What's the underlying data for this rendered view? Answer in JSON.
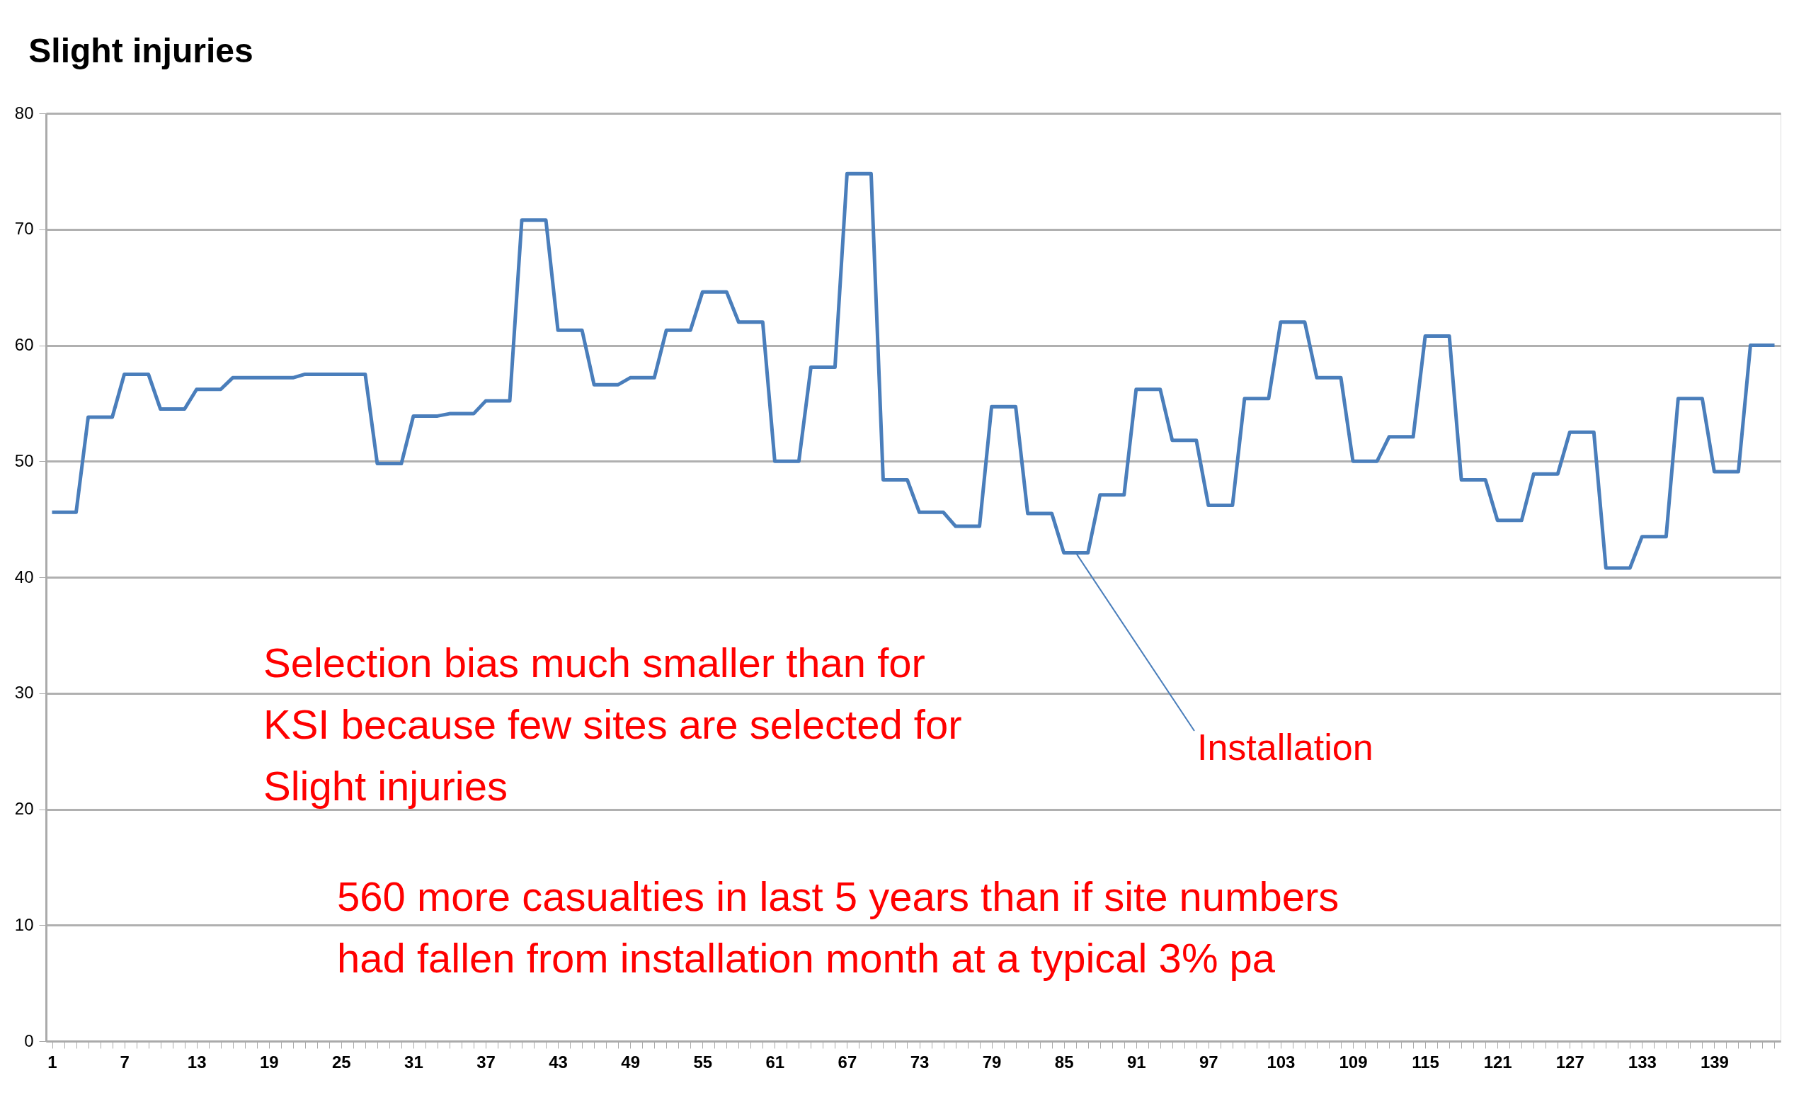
{
  "chart_data": {
    "type": "line",
    "title": "Slight injuries",
    "x": [
      1,
      2,
      3,
      4,
      5,
      6,
      7,
      8,
      9,
      10,
      11,
      12,
      13,
      14,
      15,
      16,
      17,
      18,
      19,
      20,
      21,
      22,
      23,
      24,
      25,
      26,
      27,
      28,
      29,
      30,
      31,
      32,
      33,
      34,
      35,
      36,
      37,
      38,
      39,
      40,
      41,
      42,
      43,
      44,
      45,
      46,
      47,
      48,
      49,
      50,
      51,
      52,
      53,
      54,
      55,
      56,
      57,
      58,
      59,
      60,
      61,
      62,
      63,
      64,
      65,
      66,
      67,
      68,
      69,
      70,
      71,
      72,
      73,
      74,
      75,
      76,
      77,
      78,
      79,
      80,
      81,
      82,
      83,
      84,
      85,
      86,
      87,
      88,
      89,
      90,
      91,
      92,
      93,
      94,
      95,
      96,
      97,
      98,
      99,
      100,
      101,
      102,
      103,
      104,
      105,
      106,
      107,
      108,
      109,
      110,
      111,
      112,
      113,
      114,
      115,
      116,
      117,
      118,
      119,
      120,
      121,
      122,
      123,
      124,
      125,
      126,
      127,
      128,
      129,
      130,
      131,
      132,
      133,
      134,
      135,
      136,
      137,
      138,
      139,
      140,
      141,
      142,
      143,
      144
    ],
    "series": [
      {
        "color": "#4a7ebb",
        "values": [
          45.6,
          45.6,
          45.6,
          53.8,
          53.8,
          53.8,
          57.5,
          57.5,
          57.5,
          54.5,
          54.5,
          54.5,
          56.2,
          56.2,
          56.2,
          57.2,
          57.2,
          57.2,
          57.2,
          57.2,
          57.2,
          57.5,
          57.5,
          57.5,
          57.5,
          57.5,
          57.5,
          49.8,
          49.8,
          49.8,
          53.9,
          53.9,
          53.9,
          54.1,
          54.1,
          54.1,
          55.2,
          55.2,
          55.2,
          70.8,
          70.8,
          70.8,
          61.3,
          61.3,
          61.3,
          56.6,
          56.6,
          56.6,
          57.2,
          57.2,
          57.2,
          61.3,
          61.3,
          61.3,
          64.6,
          64.6,
          64.6,
          62.0,
          62.0,
          62.0,
          50.0,
          50.0,
          50.0,
          58.1,
          58.1,
          58.1,
          74.8,
          74.8,
          74.8,
          48.4,
          48.4,
          48.4,
          45.6,
          45.6,
          45.6,
          44.4,
          44.4,
          44.4,
          54.7,
          54.7,
          54.7,
          45.5,
          45.5,
          45.5,
          42.1,
          42.1,
          42.1,
          47.1,
          47.1,
          47.1,
          56.2,
          56.2,
          56.2,
          51.8,
          51.8,
          51.8,
          46.2,
          46.2,
          46.2,
          55.4,
          55.4,
          55.4,
          62.0,
          62.0,
          62.0,
          57.2,
          57.2,
          57.2,
          50.0,
          50.0,
          50.0,
          52.1,
          52.1,
          52.1,
          60.8,
          60.8,
          60.8,
          48.4,
          48.4,
          48.4,
          44.9,
          44.9,
          44.9,
          48.9,
          48.9,
          48.9,
          52.5,
          52.5,
          52.5,
          40.8,
          40.8,
          40.8,
          43.5,
          43.5,
          43.5,
          55.4,
          55.4,
          55.4,
          49.1,
          49.1,
          49.1,
          60.0,
          60.0,
          60.0
        ]
      }
    ],
    "xlim": [
      0.5,
      144.5
    ],
    "xticks": [
      1,
      {
        "value": 2,
        "label": null
      },
      {
        "value": 3,
        "label": null
      },
      {
        "value": 4,
        "label": null
      },
      {
        "value": 5,
        "label": null
      },
      {
        "value": 6,
        "label": null
      },
      7,
      {
        "value": 8,
        "label": null
      },
      {
        "value": 9,
        "label": null
      },
      {
        "value": 10,
        "label": null
      },
      {
        "value": 11,
        "label": null
      },
      {
        "value": 12,
        "label": null
      },
      13,
      {
        "value": 14,
        "label": null
      },
      {
        "value": 15,
        "label": null
      },
      {
        "value": 16,
        "label": null
      },
      {
        "value": 17,
        "label": null
      },
      {
        "value": 18,
        "label": null
      },
      19,
      {
        "value": 20,
        "label": null
      },
      {
        "value": 21,
        "label": null
      },
      {
        "value": 22,
        "label": null
      },
      {
        "value": 23,
        "label": null
      },
      {
        "value": 24,
        "label": null
      },
      25,
      {
        "value": 26,
        "label": null
      },
      {
        "value": 27,
        "label": null
      },
      {
        "value": 28,
        "label": null
      },
      {
        "value": 29,
        "label": null
      },
      {
        "value": 30,
        "label": null
      },
      31,
      {
        "value": 32,
        "label": null
      },
      {
        "value": 33,
        "label": null
      },
      {
        "value": 34,
        "label": null
      },
      {
        "value": 35,
        "label": null
      },
      {
        "value": 36,
        "label": null
      },
      37,
      {
        "value": 38,
        "label": null
      },
      {
        "value": 39,
        "label": null
      },
      {
        "value": 40,
        "label": null
      },
      {
        "value": 41,
        "label": null
      },
      {
        "value": 42,
        "label": null
      },
      43,
      {
        "value": 44,
        "label": null
      },
      {
        "value": 45,
        "label": null
      },
      {
        "value": 46,
        "label": null
      },
      {
        "value": 47,
        "label": null
      },
      {
        "value": 48,
        "label": null
      },
      49,
      {
        "value": 50,
        "label": null
      },
      {
        "value": 51,
        "label": null
      },
      {
        "value": 52,
        "label": null
      },
      {
        "value": 53,
        "label": null
      },
      {
        "value": 54,
        "label": null
      },
      55,
      {
        "value": 56,
        "label": null
      },
      {
        "value": 57,
        "label": null
      },
      {
        "value": 58,
        "label": null
      },
      {
        "value": 59,
        "label": null
      },
      {
        "value": 60,
        "label": null
      },
      61,
      {
        "value": 62,
        "label": null
      },
      {
        "value": 63,
        "label": null
      },
      {
        "value": 64,
        "label": null
      },
      {
        "value": 65,
        "label": null
      },
      {
        "value": 66,
        "label": null
      },
      67,
      {
        "value": 68,
        "label": null
      },
      {
        "value": 69,
        "label": null
      },
      {
        "value": 70,
        "label": null
      },
      {
        "value": 71,
        "label": null
      },
      {
        "value": 72,
        "label": null
      },
      73,
      {
        "value": 74,
        "label": null
      },
      {
        "value": 75,
        "label": null
      },
      {
        "value": 76,
        "label": null
      },
      {
        "value": 77,
        "label": null
      },
      {
        "value": 78,
        "label": null
      },
      79,
      {
        "value": 80,
        "label": null
      },
      {
        "value": 81,
        "label": null
      },
      {
        "value": 82,
        "label": null
      },
      {
        "value": 83,
        "label": null
      },
      {
        "value": 84,
        "label": null
      },
      85,
      {
        "value": 86,
        "label": null
      },
      {
        "value": 87,
        "label": null
      },
      {
        "value": 88,
        "label": null
      },
      {
        "value": 89,
        "label": null
      },
      {
        "value": 90,
        "label": null
      },
      91,
      {
        "value": 92,
        "label": null
      },
      {
        "value": 93,
        "label": null
      },
      {
        "value": 94,
        "label": null
      },
      {
        "value": 95,
        "label": null
      },
      {
        "value": 96,
        "label": null
      },
      97,
      {
        "value": 98,
        "label": null
      },
      {
        "value": 99,
        "label": null
      },
      {
        "value": 100,
        "label": null
      },
      {
        "value": 101,
        "label": null
      },
      {
        "value": 102,
        "label": null
      },
      103,
      {
        "value": 104,
        "label": null
      },
      {
        "value": 105,
        "label": null
      },
      {
        "value": 106,
        "label": null
      },
      {
        "value": 107,
        "label": null
      },
      {
        "value": 108,
        "label": null
      },
      109,
      {
        "value": 110,
        "label": null
      },
      {
        "value": 111,
        "label": null
      },
      {
        "value": 112,
        "label": null
      },
      {
        "value": 113,
        "label": null
      },
      {
        "value": 114,
        "label": null
      },
      115,
      {
        "value": 116,
        "label": null
      },
      {
        "value": 117,
        "label": null
      },
      {
        "value": 118,
        "label": null
      },
      {
        "value": 119,
        "label": null
      },
      {
        "value": 120,
        "label": null
      },
      121,
      {
        "value": 122,
        "label": null
      },
      {
        "value": 123,
        "label": null
      },
      {
        "value": 124,
        "label": null
      },
      {
        "value": 125,
        "label": null
      },
      {
        "value": 126,
        "label": null
      },
      127,
      {
        "value": 128,
        "label": null
      },
      {
        "value": 129,
        "label": null
      },
      {
        "value": 130,
        "label": null
      },
      {
        "value": 131,
        "label": null
      },
      {
        "value": 132,
        "label": null
      },
      133,
      {
        "value": 134,
        "label": null
      },
      {
        "value": 135,
        "label": null
      },
      {
        "value": 136,
        "label": null
      },
      {
        "value": 137,
        "label": null
      },
      {
        "value": 138,
        "label": null
      },
      139,
      {
        "value": 140,
        "label": null
      },
      {
        "value": 141,
        "label": null
      },
      {
        "value": 142,
        "label": null
      },
      {
        "value": 143,
        "label": null
      },
      {
        "value": 144,
        "label": null
      }
    ],
    "ylim": [
      0,
      80
    ],
    "yticks": [
      0,
      10,
      20,
      30,
      40,
      50,
      60,
      70,
      80
    ],
    "grid": "y",
    "marker": "none",
    "line_style": "solid",
    "legend": false,
    "annotations": [
      "Selection bias much smaller than for KSI because few sites are selected for Slight injuries",
      "560 more casualties in last 5 years than if site numbers had fallen from installation month at a typical 3% pa",
      {
        "text": "Installation",
        "x": 86,
        "y": 42.1
      }
    ]
  }
}
